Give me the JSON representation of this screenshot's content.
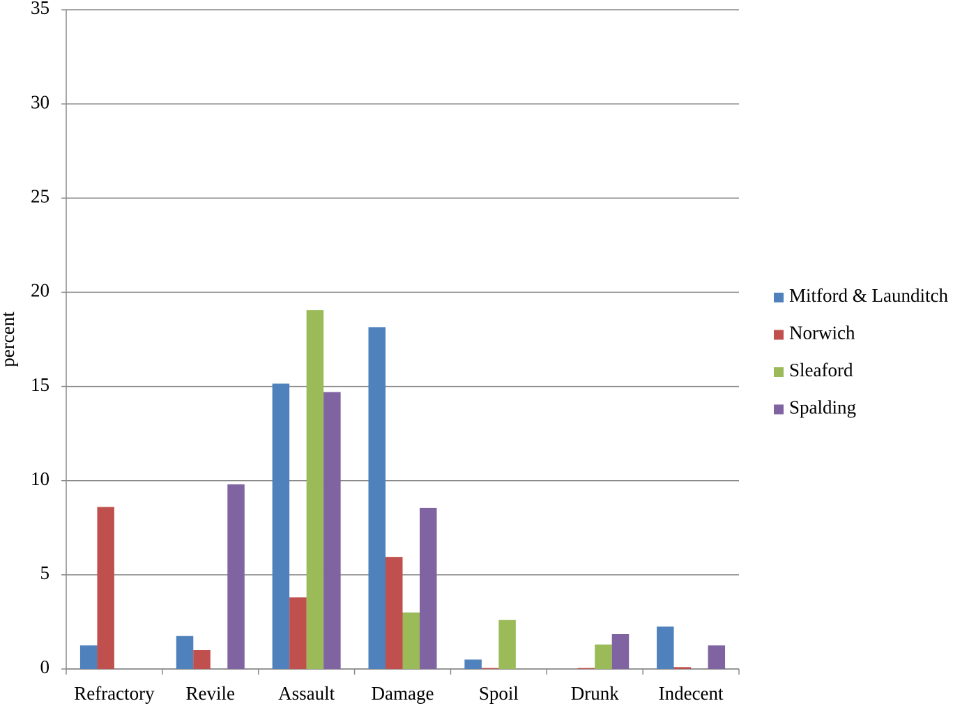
{
  "chart_data": {
    "type": "bar",
    "y_label": "percent",
    "categories": [
      "Refractory",
      "Revile",
      "Assault",
      "Damage",
      "Spoil",
      "Drunk",
      "Indecent"
    ],
    "series": [
      {
        "name": "Mitford & Launditch",
        "color": "#4f81bd",
        "values": [
          1.25,
          1.75,
          15.15,
          18.15,
          0.5,
          0,
          2.25
        ]
      },
      {
        "name": "Norwich",
        "color": "#c0504d",
        "values": [
          8.6,
          1.0,
          3.8,
          5.95,
          0.05,
          0.05,
          0.1
        ]
      },
      {
        "name": "Sleaford",
        "color": "#9bbb59",
        "values": [
          0,
          0,
          19.05,
          3.0,
          2.6,
          1.3,
          0
        ]
      },
      {
        "name": "Spalding",
        "color": "#8064a2",
        "values": [
          0,
          9.8,
          14.7,
          8.55,
          0,
          1.85,
          1.25
        ]
      }
    ],
    "ylim": [
      0,
      35
    ],
    "yticks": [
      0,
      5,
      10,
      15,
      20,
      25,
      30,
      35
    ],
    "grid": true,
    "legend": "right"
  }
}
